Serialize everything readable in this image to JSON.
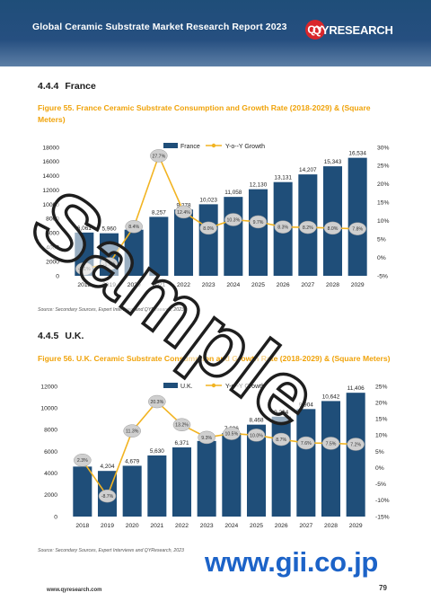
{
  "header": {
    "title": "Global Ceramic Substrate Market Research Report 2023"
  },
  "logo": {
    "mark": "QY",
    "text": "QYRESEARCH"
  },
  "sections": [
    {
      "num": "4.4.4",
      "title": "France"
    },
    {
      "num": "4.4.5",
      "title": "U.K."
    }
  ],
  "figures": [
    {
      "label": "Figure 55.   France Ceramic Substrate Consumption and Growth Rate (2018-2029) & (Square Meters)",
      "source": "Source: Secondary Sources, Expert Interviews and QYResearch, 2023"
    },
    {
      "label": "Figure 56.   U.K. Ceramic Substrate Consumption and Growth Rate (2018-2029) & (Square Meters)",
      "source": "Source: Secondary Sources, Expert Interviews and QYResearch, 2023"
    }
  ],
  "chart_data": [
    {
      "type": "bar",
      "categories": [
        "2018",
        "2019",
        "2020",
        "2021",
        "2022",
        "2023",
        "2024",
        "2025",
        "2026",
        "2027",
        "2028",
        "2029"
      ],
      "series": [
        {
          "name": "France",
          "type": "bar",
          "values": [
            6061,
            5960,
            6460,
            8257,
            9278,
            10023,
            11058,
            12130,
            13131,
            14207,
            15343,
            16534
          ],
          "value_labels": [
            "6,061",
            "5,960",
            "6,460",
            "8,257",
            "9,278",
            "10,023",
            "11,058",
            "12,130",
            "13,131",
            "14,207",
            "15,343",
            "16,534"
          ]
        },
        {
          "name": "Y-o--Y Growth",
          "type": "line",
          "values": [
            -3.1,
            -1.7,
            8.4,
            27.7,
            12.4,
            8.0,
            10.3,
            9.7,
            8.3,
            8.2,
            8.0,
            7.8
          ],
          "value_labels": [
            "-3.1%",
            "-1.7%",
            "8.4%",
            "27.7%",
            "12.4%",
            "8.0%",
            "10.3%",
            "9.7%",
            "8.3%",
            "8.2%",
            "8.0%",
            "7.8%"
          ]
        }
      ],
      "ylim": [
        0,
        18000
      ],
      "y_ticks": [
        "0",
        "2000",
        "4000",
        "6000",
        "8000",
        "10000",
        "12000",
        "14000",
        "16000",
        "18000"
      ],
      "y2lim": [
        -5,
        30
      ],
      "y2_ticks": [
        "-5%",
        "0%",
        "5%",
        "10%",
        "15%",
        "20%",
        "25%",
        "30%"
      ],
      "legend": "top-center",
      "colors": {
        "bar": "#1f4e79",
        "line": "#f2b422"
      }
    },
    {
      "type": "bar",
      "categories": [
        "2018",
        "2019",
        "2020",
        "2021",
        "2022",
        "2023",
        "2024",
        "2025",
        "2026",
        "2027",
        "2028",
        "2029"
      ],
      "series": [
        {
          "name": "U.K.",
          "type": "bar",
          "values": [
            4605,
            4204,
            4679,
            5630,
            6371,
            6964,
            7696,
            8468,
            9204,
            9904,
            10642,
            11406
          ],
          "value_labels": [
            "4,605",
            "4,204",
            "4,679",
            "5,630",
            "6,371",
            "6,964",
            "7,696",
            "8,468",
            "9,204",
            "9,904",
            "10,642",
            "11,406"
          ]
        },
        {
          "name": "Y-o--Y Growth",
          "type": "line",
          "values": [
            2.3,
            -8.7,
            11.3,
            20.3,
            13.2,
            9.3,
            10.5,
            10.0,
            8.7,
            7.6,
            7.5,
            7.2
          ],
          "value_labels": [
            "2.3%",
            "-8.7%",
            "11.3%",
            "20.3%",
            "13.2%",
            "9.3%",
            "10.5%",
            "10.0%",
            "8.7%",
            "7.6%",
            "7.5%",
            "7.2%"
          ]
        }
      ],
      "ylim": [
        0,
        12000
      ],
      "y_ticks": [
        "0",
        "2000",
        "4000",
        "6000",
        "8000",
        "10000",
        "12000"
      ],
      "y2lim": [
        -15,
        25
      ],
      "y2_ticks": [
        "-15%",
        "-10%",
        "-5%",
        "0%",
        "5%",
        "10%",
        "15%",
        "20%",
        "25%"
      ],
      "legend": "top-center",
      "colors": {
        "bar": "#1f4e79",
        "line": "#f2b422"
      }
    }
  ],
  "watermarks": {
    "sample": "Sample",
    "site": "www.gii.co.jp"
  },
  "footer": {
    "url": "www.qyresearch.com",
    "page": "79"
  }
}
